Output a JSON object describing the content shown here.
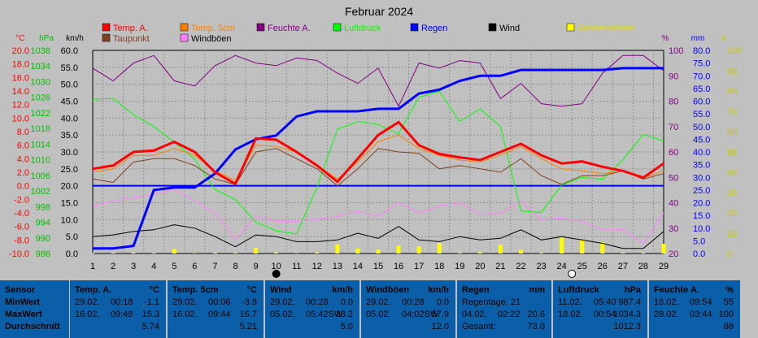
{
  "chart_data": {
    "type": "line",
    "title": "Februar 2024",
    "x": [
      1,
      2,
      3,
      4,
      5,
      6,
      7,
      8,
      9,
      10,
      11,
      12,
      13,
      14,
      15,
      16,
      17,
      18,
      19,
      20,
      21,
      22,
      23,
      24,
      25,
      26,
      27,
      28,
      29
    ],
    "axes_left": [
      {
        "unit": "°C",
        "color": "#ff0000",
        "ticks": [
          "20.0",
          "18.0",
          "16.0",
          "14.0",
          "12.0",
          "10.0",
          "8.0",
          "6.0",
          "4.0",
          "2.0",
          "0.0",
          "-2.0",
          "-4.0",
          "-6.0",
          "-8.0",
          "-10.0"
        ]
      },
      {
        "unit": "hPa",
        "color": "#00c000",
        "ticks": [
          "1038",
          "1034",
          "1030",
          "1026",
          "1022",
          "1018",
          "1014",
          "1010",
          "1006",
          "1002",
          "998",
          "994",
          "990",
          "986"
        ]
      },
      {
        "unit": "km/h",
        "color": "#000000",
        "ticks": [
          "60.0",
          "55.0",
          "50.0",
          "45.0",
          "40.0",
          "35.0",
          "30.0",
          "25.0",
          "20.0",
          "15.0",
          "10.0",
          "5.0",
          "0.0"
        ]
      }
    ],
    "axes_right": [
      {
        "unit": "%",
        "color": "#800080",
        "ticks": [
          "100",
          "90",
          "80",
          "70",
          "60",
          "50",
          "40",
          "30",
          "20"
        ]
      },
      {
        "unit": "mm",
        "color": "#0000ff",
        "ticks": [
          "80.0",
          "75.0",
          "70.0",
          "65.0",
          "60.0",
          "55.0",
          "50.0",
          "45.0",
          "40.0",
          "35.0",
          "30.0",
          "25.0",
          "20.0",
          "15.0",
          "10.0",
          "5.0",
          "0.0"
        ]
      },
      {
        "unit": "h",
        "color": "#c8c800",
        "ticks": [
          "100",
          "90",
          "80",
          "70",
          "60",
          "50",
          "40",
          "30",
          "20",
          "10",
          "0"
        ]
      }
    ],
    "legend": [
      {
        "label": "Temp. A.",
        "color": "#ff0000"
      },
      {
        "label": "Temp. 5cm",
        "color": "#ff8000"
      },
      {
        "label": "Feuchte A.",
        "color": "#800080"
      },
      {
        "label": "Luftdruck",
        "color": "#00ff00"
      },
      {
        "label": "Regen",
        "color": "#0000ff"
      },
      {
        "label": "Wind",
        "color": "#000000"
      },
      {
        "label": "Sonnenschein",
        "color": "#ffff00"
      },
      {
        "label": "Taupunkt",
        "color": "#804020"
      },
      {
        "label": "Windböen",
        "color": "#ff80ff"
      }
    ],
    "series": [
      {
        "name": "Temp. A.",
        "axis": "C",
        "color": "#ff0000",
        "values": [
          2.5,
          3.0,
          5.0,
          5.2,
          6.5,
          5.0,
          2.0,
          0.3,
          7.0,
          6.8,
          5.0,
          3.0,
          0.6,
          4.0,
          7.5,
          9.4,
          6.0,
          4.7,
          4.2,
          3.8,
          5.0,
          6.2,
          4.5,
          3.3,
          3.6,
          2.8,
          2.2,
          1.2,
          3.3
        ]
      },
      {
        "name": "Temp. 5cm",
        "axis": "C",
        "color": "#ff8000",
        "values": [
          2.0,
          2.5,
          4.5,
          4.5,
          5.5,
          4.5,
          2.2,
          0.8,
          6.0,
          5.8,
          5.0,
          3.0,
          1.0,
          3.5,
          6.5,
          7.5,
          5.5,
          4.5,
          3.8,
          3.5,
          4.5,
          5.8,
          4.0,
          2.5,
          2.2,
          1.8,
          2.2,
          1.2,
          2.2
        ]
      },
      {
        "name": "Taupunkt",
        "axis": "C",
        "color": "#804020",
        "values": [
          1.0,
          0.5,
          3.5,
          4.0,
          4.0,
          3.0,
          1.0,
          0.2,
          5.0,
          5.5,
          4.0,
          2.5,
          0.0,
          2.5,
          5.5,
          5.0,
          4.8,
          2.5,
          3.0,
          2.5,
          2.0,
          4.0,
          1.5,
          0.2,
          1.5,
          1.5,
          2.2,
          1.0,
          1.8
        ]
      },
      {
        "name": "Feuchte A.",
        "axis": "pct",
        "color": "#800080",
        "values": [
          93,
          88,
          95,
          98,
          88,
          86,
          94,
          98,
          95,
          94,
          97,
          96,
          91,
          87,
          93,
          78,
          95,
          93,
          96,
          95,
          81,
          87,
          79,
          78,
          79,
          91,
          98,
          98,
          92
        ]
      },
      {
        "name": "Luftdruck",
        "axis": "hPa",
        "color": "#00ff00",
        "values": [
          1025.5,
          1025.7,
          1021.5,
          1018.5,
          1014.5,
          1010.2,
          1002.4,
          999.8,
          994.0,
          991.8,
          991.0,
          1003.0,
          1017.8,
          1019.8,
          1019.0,
          1016.6,
          1026.0,
          1027.5,
          1019.8,
          1023.0,
          1018.5,
          996.9,
          996.5,
          1003.5,
          1005.5,
          1005.0,
          1010.0,
          1016.5,
          1014.8
        ]
      },
      {
        "name": "Regen",
        "axis": "mm",
        "color": "#0000ff",
        "values": [
          2.0,
          2.0,
          3.0,
          25.0,
          26.0,
          26.0,
          31.5,
          41.0,
          45.0,
          46.5,
          54.0,
          56.0,
          56.0,
          56.0,
          57.0,
          57.0,
          63.0,
          64.5,
          68.0,
          70.0,
          70.0,
          72.3,
          72.3,
          72.3,
          72.3,
          72.3,
          73.0,
          73.0,
          73.0
        ]
      },
      {
        "name": "Wind",
        "axis": "kmh",
        "color": "#000000",
        "values": [
          5.0,
          5.5,
          6.5,
          7.0,
          8.5,
          7.5,
          5.0,
          2.0,
          5.5,
          5.0,
          3.5,
          3.5,
          4.0,
          6.0,
          4.5,
          8.0,
          4.0,
          3.5,
          5.0,
          4.0,
          4.5,
          7.0,
          4.0,
          5.0,
          4.0,
          3.0,
          1.5,
          1.5,
          6.5
        ]
      },
      {
        "name": "Windböen",
        "axis": "kmh",
        "color": "#ff80ff",
        "values": [
          14.0,
          15.5,
          16.5,
          17.5,
          19.0,
          15.5,
          12.0,
          4.0,
          11.0,
          9.5,
          9.5,
          10.0,
          11.0,
          12.5,
          11.0,
          15.0,
          12.0,
          14.0,
          15.0,
          11.5,
          12.0,
          15.5,
          10.0,
          10.5,
          9.5,
          7.0,
          7.0,
          3.0,
          12.0
        ]
      }
    ],
    "sunshine": {
      "axis": "h",
      "color": "#ffff00",
      "values": [
        0.4,
        0.3,
        0.4,
        0.2,
        2.2,
        0.1,
        0.4,
        0.2,
        2.8,
        0.5,
        0.1,
        0.5,
        4.5,
        2.4,
        1.9,
        3.8,
        3.5,
        5.2,
        0.2,
        0.7,
        4.2,
        1.8,
        0.2,
        7.8,
        6.5,
        5.5,
        0.2,
        0.3,
        4.8
      ]
    },
    "markers": [
      {
        "x": 10,
        "symbol": "new-moon"
      },
      {
        "x": 24.5,
        "symbol": "full-moon"
      }
    ],
    "zero_line_color": "#0000ff",
    "grid": true
  },
  "stats": {
    "row_labels": [
      "Sensor",
      "MinWert",
      "MaxWert",
      "Durchschnitt"
    ],
    "panels": [
      {
        "title": "Temp. A.",
        "unit": "°C",
        "rows": [
          [
            "29.02.",
            "00:18",
            "-1.1"
          ],
          [
            "16.02.",
            "09:48",
            "15.3"
          ],
          [
            "",
            "",
            "5.74"
          ]
        ]
      },
      {
        "title": "Temp. 5cm",
        "unit": "°C",
        "rows": [
          [
            "29.02.",
            "00:06",
            "-3.9"
          ],
          [
            "16.02.",
            "09:44",
            "16.7"
          ],
          [
            "",
            "",
            "5.21"
          ]
        ]
      },
      {
        "title": "Wind",
        "unit": "km/h",
        "rows": [
          [
            "29.02.",
            "00:28",
            "0.0"
          ],
          [
            "05.02.",
            "05:42SW",
            "23.2"
          ],
          [
            "",
            "",
            "5.0"
          ]
        ]
      },
      {
        "title": "Windböen",
        "unit": "km/h",
        "rows": [
          [
            "29.02.",
            "00:28",
            "0.0"
          ],
          [
            "05.02.",
            "04:02SW",
            "57.9"
          ],
          [
            "",
            "",
            "12.0"
          ]
        ]
      },
      {
        "title": "Regen",
        "unit": "mm",
        "rows": [
          [
            "Regentage: 21",
            "",
            ""
          ],
          [
            "04.02.",
            "02:22",
            "20.6"
          ],
          [
            "Gesamt:",
            "",
            "73.0"
          ]
        ]
      },
      {
        "title": "Luftdruck",
        "unit": "hPa",
        "rows": [
          [
            "11.02.",
            "05:40",
            "987.4"
          ],
          [
            "18.02.",
            "00:54",
            "1034.3"
          ],
          [
            "",
            "",
            "1012.3"
          ]
        ]
      },
      {
        "title": "Feuchte A.",
        "unit": "%",
        "rows": [
          [
            "16.02.",
            "09:54",
            "55"
          ],
          [
            "28.02.",
            "03:44",
            "100"
          ],
          [
            "",
            "",
            "88"
          ]
        ]
      }
    ]
  }
}
